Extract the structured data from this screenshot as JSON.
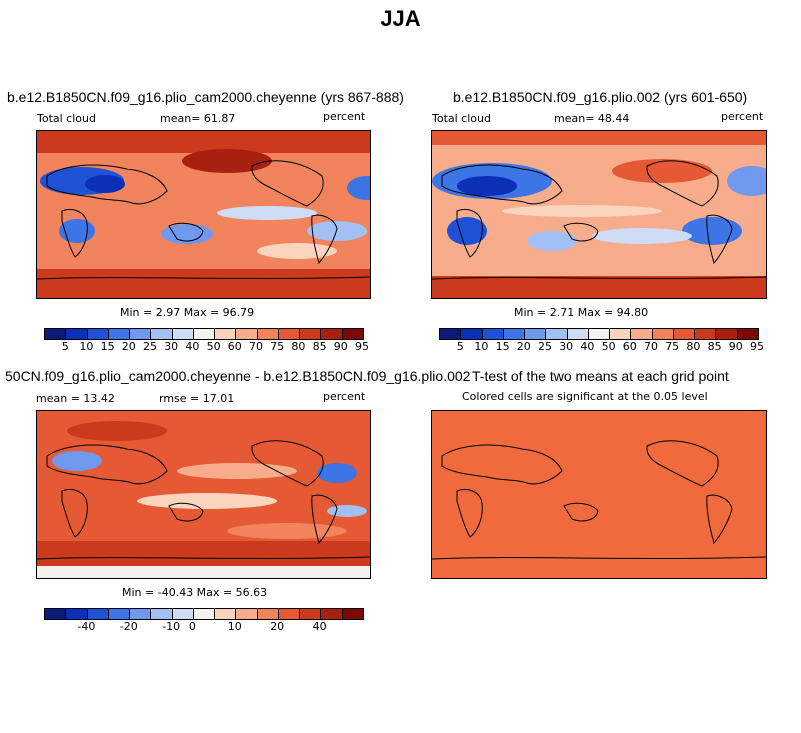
{
  "title": "JJA",
  "colors": {
    "scale": [
      "#0a1a78",
      "#0c2fb8",
      "#1f51d6",
      "#3d74e6",
      "#6f98ee",
      "#a3c0f4",
      "#cfdcf5",
      "#f4f1ee",
      "#fbd4be",
      "#f7ad8b",
      "#f1835d",
      "#e55a35",
      "#cc3a1e",
      "#a8200f",
      "#7d0808"
    ],
    "land": "#000000",
    "ttest_fill": "#f06a3e"
  },
  "panels": [
    {
      "title": "b.e12.B1850CN.f09_g16.plio_cam2000.cheyenne (yrs 867-888)",
      "left_label": "Total cloud",
      "center_label": "mean=  61.87",
      "right_label": "percent",
      "minmax": "Min =   2.97 Max =  96.79",
      "colorbar_ticks": [
        "5",
        "10",
        "15",
        "20",
        "25",
        "30",
        "40",
        "50",
        "60",
        "70",
        "75",
        "80",
        "85",
        "90",
        "95"
      ]
    },
    {
      "title": "b.e12.B1850CN.f09_g16.plio.002 (yrs 601-650)",
      "left_label": "Total cloud",
      "center_label": "mean=  48.44",
      "right_label": "percent",
      "minmax": "Min =   2.71 Max =  94.80",
      "colorbar_ticks": [
        "5",
        "10",
        "15",
        "20",
        "25",
        "30",
        "40",
        "50",
        "60",
        "70",
        "75",
        "80",
        "85",
        "90",
        "95"
      ]
    },
    {
      "title": "50CN.f09_g16.plio_cam2000.cheyenne - b.e12.B1850CN.f09_g16.plio.002",
      "left_label": "mean =  13.42",
      "center_label": "rmse =  17.01",
      "right_label": "percent",
      "minmax": "Min = -40.43 Max =  56.63",
      "colorbar_ticks": [
        "-40",
        "-20",
        "-10",
        "0",
        "10",
        "20",
        "40"
      ]
    },
    {
      "title": "T-test of the two means at each grid point",
      "subtitle": "Colored cells are significant at the 0.05 level"
    }
  ],
  "chart_data": [
    {
      "type": "heatmap",
      "title": "b.e12.B1850CN.f09_g16.plio_cam2000.cheyenne (yrs 867-888)",
      "variable": "Total cloud",
      "units": "percent",
      "mean": 61.87,
      "min": 2.97,
      "max": 96.79,
      "levels": [
        5,
        10,
        15,
        20,
        25,
        30,
        40,
        50,
        60,
        70,
        75,
        80,
        85,
        90,
        95
      ]
    },
    {
      "type": "heatmap",
      "title": "b.e12.B1850CN.f09_g16.plio.002 (yrs 601-650)",
      "variable": "Total cloud",
      "units": "percent",
      "mean": 48.44,
      "min": 2.71,
      "max": 94.8,
      "levels": [
        5,
        10,
        15,
        20,
        25,
        30,
        40,
        50,
        60,
        70,
        75,
        80,
        85,
        90,
        95
      ]
    },
    {
      "type": "heatmap",
      "title": "50CN.f09_g16.plio_cam2000.cheyenne - b.e12.B1850CN.f09_g16.plio.002",
      "units": "percent",
      "mean": 13.42,
      "rmse": 17.01,
      "min": -40.43,
      "max": 56.63,
      "tick_labels": [
        -40,
        -20,
        -10,
        0,
        10,
        20,
        40
      ]
    },
    {
      "type": "heatmap",
      "title": "T-test of the two means at each grid point",
      "note": "Colored cells are significant at the 0.05 level"
    }
  ]
}
